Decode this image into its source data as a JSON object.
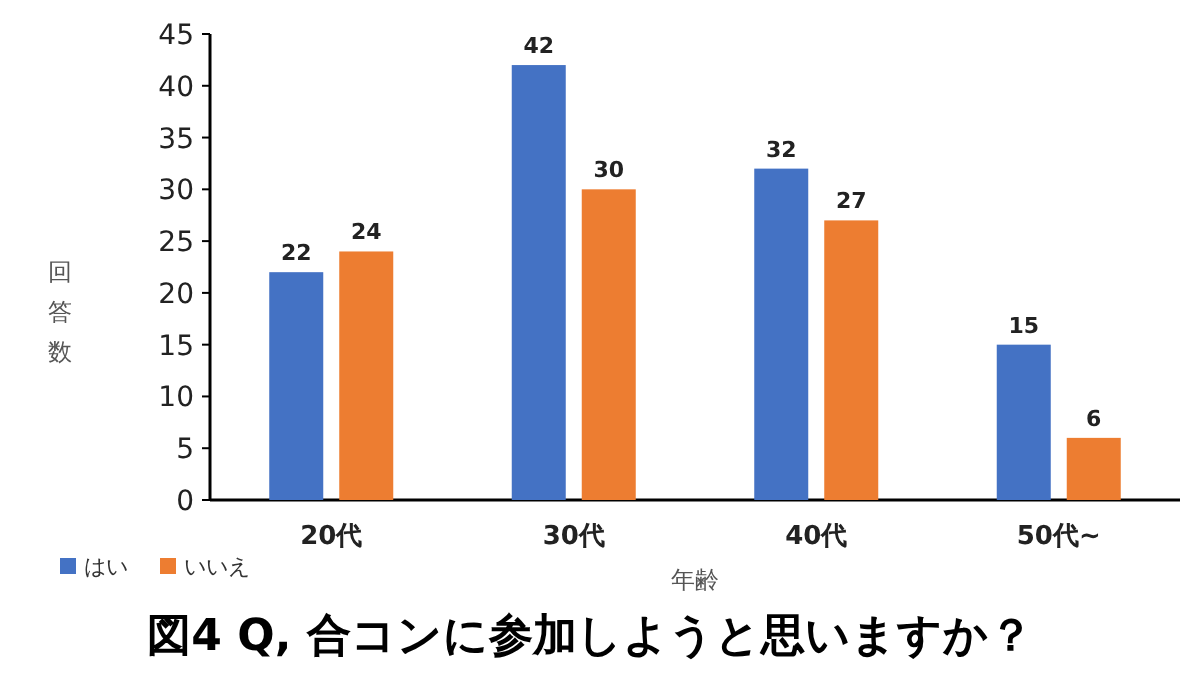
{
  "chart_data": {
    "type": "bar",
    "title": "図4 Q, 合コンに参加しようと思いますか？",
    "xlabel": "年齢",
    "ylabel": "回答数",
    "categories": [
      "20代",
      "30代",
      "40代",
      "50代~"
    ],
    "series": [
      {
        "name": "はい",
        "color": "#4472c4",
        "values": [
          22,
          42,
          32,
          15
        ]
      },
      {
        "name": "いいえ",
        "color": "#ed7d31",
        "values": [
          24,
          30,
          27,
          6
        ]
      }
    ],
    "ylim": [
      0,
      45
    ],
    "yticks": [
      0,
      5,
      10,
      15,
      20,
      25,
      30,
      35,
      40,
      45
    ],
    "data_labels": true,
    "legend": "bottom left",
    "grid": false
  }
}
